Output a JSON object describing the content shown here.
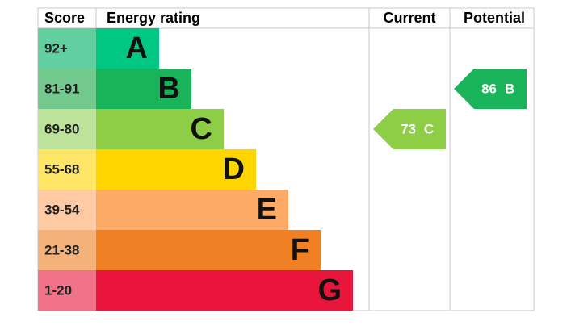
{
  "header": {
    "score": "Score",
    "energy_rating": "Energy rating",
    "current": "Current",
    "potential": "Potential"
  },
  "bands": [
    {
      "score": "92+",
      "letter": "A",
      "color": "#00c781",
      "light": "#62cfa1"
    },
    {
      "score": "81-91",
      "letter": "B",
      "color": "#19b459",
      "light": "#74c98f"
    },
    {
      "score": "69-80",
      "letter": "C",
      "color": "#8dce46",
      "light": "#bde39a"
    },
    {
      "score": "55-68",
      "letter": "D",
      "color": "#ffd500",
      "light": "#ffe566"
    },
    {
      "score": "39-54",
      "letter": "E",
      "color": "#fcaa65",
      "light": "#fdcaa3"
    },
    {
      "score": "21-38",
      "letter": "F",
      "color": "#ef8023",
      "light": "#f4b27a"
    },
    {
      "score": "1-20",
      "letter": "G",
      "color": "#e9153b",
      "light": "#f07389"
    }
  ],
  "current": {
    "score": 73,
    "rating": "C"
  },
  "potential": {
    "score": 86,
    "rating": "B"
  }
}
